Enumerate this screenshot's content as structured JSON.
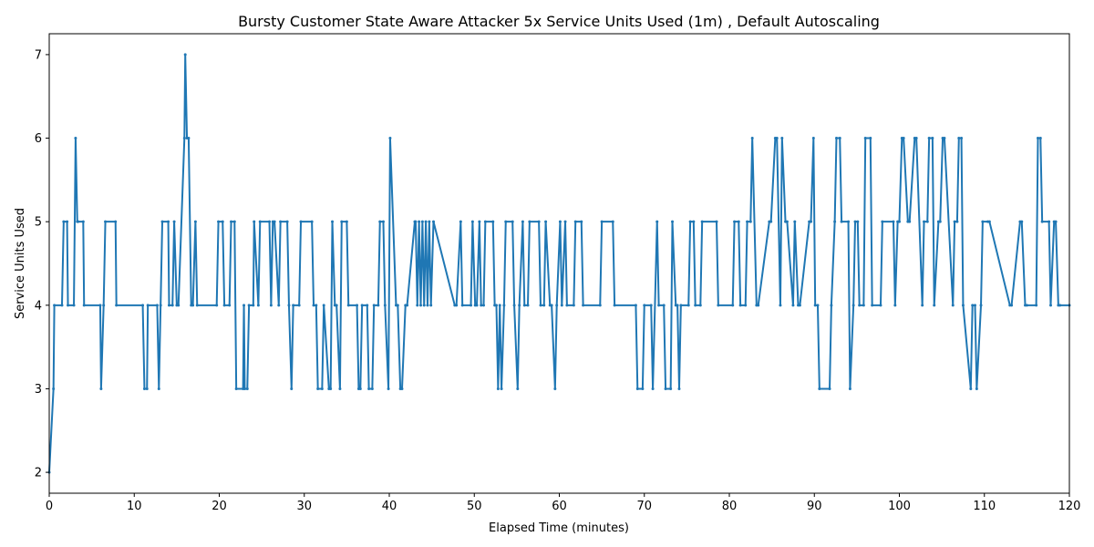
{
  "chart_data": {
    "type": "line",
    "title": "Bursty Customer State Aware Attacker 5x Service Units Used (1m) , Default Autoscaling",
    "xlabel": "Elapsed Time (minutes)",
    "ylabel": "Service Units Used",
    "xlim": [
      0,
      120
    ],
    "ylim": [
      1.75,
      7.25
    ],
    "xticks": [
      0,
      10,
      20,
      30,
      40,
      50,
      60,
      70,
      80,
      90,
      100,
      110,
      120
    ],
    "yticks": [
      2,
      3,
      4,
      5,
      6,
      7
    ],
    "grid": false,
    "color": "#1f77b4",
    "series": [
      {
        "name": "",
        "x": [
          0,
          0.5,
          0.6,
          1.5,
          1.7,
          2.1,
          2.2,
          2.9,
          3.1,
          3.3,
          3.4,
          4.0,
          4.1,
          6.0,
          6.1,
          6.4,
          6.6,
          7.8,
          7.9,
          11.0,
          11.2,
          11.5,
          11.6,
          12.7,
          12.9,
          13.1,
          13.3,
          14.0,
          14.1,
          14.5,
          14.7,
          15.0,
          15.2,
          15.9,
          16.0,
          16.2,
          16.4,
          16.7,
          16.9,
          17.2,
          17.4,
          19.7,
          19.9,
          20.4,
          20.6,
          21.2,
          21.4,
          21.8,
          22.0,
          22.8,
          22.9,
          23.0,
          23.3,
          23.5,
          24.0,
          24.1,
          24.6,
          24.8,
          25.9,
          26.1,
          26.3,
          26.5,
          27.0,
          27.2,
          28.0,
          28.2,
          28.5,
          28.7,
          29.4,
          29.6,
          30.9,
          31.1,
          31.4,
          31.6,
          32.1,
          32.3,
          32.9,
          33.1,
          33.3,
          33.6,
          33.8,
          34.2,
          34.4,
          35.0,
          35.2,
          36.2,
          36.4,
          36.6,
          36.8,
          37.4,
          37.6,
          38.0,
          38.2,
          38.7,
          38.9,
          39.3,
          39.5,
          39.9,
          40.1,
          40.8,
          41.0,
          41.3,
          41.5,
          41.9,
          42.1,
          43.0,
          43.1,
          43.3,
          43.5,
          43.7,
          43.9,
          44.1,
          44.3,
          44.5,
          44.7,
          44.9,
          45.2,
          47.7,
          47.9,
          48.4,
          48.6,
          49.6,
          49.8,
          50.1,
          50.3,
          50.6,
          50.8,
          51.1,
          51.3,
          52.2,
          52.4,
          52.6,
          52.8,
          53.0,
          53.2,
          53.5,
          53.7,
          54.5,
          54.7,
          55.1,
          55.3,
          55.7,
          55.9,
          56.3,
          56.5,
          57.6,
          57.8,
          58.2,
          58.4,
          58.9,
          59.1,
          59.5,
          59.7,
          60.1,
          60.3,
          60.7,
          60.9,
          61.7,
          61.9,
          62.6,
          62.8,
          64.8,
          65.0,
          66.3,
          66.5,
          69.0,
          69.2,
          69.8,
          70.0,
          70.8,
          71.0,
          71.5,
          71.7,
          72.3,
          72.5,
          73.1,
          73.3,
          73.7,
          73.9,
          74.1,
          74.3,
          75.2,
          75.4,
          75.8,
          76.0,
          76.6,
          76.8,
          78.5,
          78.7,
          80.4,
          80.6,
          81.1,
          81.3,
          81.9,
          82.1,
          82.5,
          82.7,
          83.2,
          83.4,
          84.7,
          84.9,
          85.4,
          85.6,
          86.0,
          86.2,
          86.6,
          86.8,
          87.5,
          87.7,
          88.1,
          88.3,
          89.4,
          89.6,
          89.9,
          90.1,
          90.4,
          90.6,
          91.8,
          92.0,
          92.4,
          92.6,
          93.0,
          93.2,
          94.0,
          94.2,
          94.6,
          94.8,
          95.1,
          95.3,
          95.8,
          96.0,
          96.6,
          96.8,
          97.8,
          98.0,
          99.3,
          99.5,
          99.8,
          100.0,
          100.3,
          100.5,
          101.0,
          101.2,
          101.8,
          102.0,
          102.7,
          102.9,
          103.3,
          103.5,
          103.9,
          104.1,
          104.6,
          104.8,
          105.1,
          105.3,
          106.3,
          106.5,
          106.8,
          107.0,
          107.3,
          107.5,
          108.4,
          108.6,
          108.9,
          109.1,
          109.6,
          109.8,
          110.4,
          110.6,
          113.0,
          113.2,
          114.2,
          114.4,
          114.8,
          115.0,
          116.1,
          116.3,
          116.6,
          116.8,
          117.6,
          117.8,
          118.2,
          118.4,
          118.7,
          118.9,
          120.0
        ],
        "y": [
          2,
          3,
          4,
          4,
          5,
          5,
          4,
          4,
          6,
          5,
          5,
          5,
          4,
          4,
          3,
          4,
          5,
          5,
          4,
          4,
          3,
          3,
          4,
          4,
          3,
          4,
          5,
          5,
          4,
          4,
          5,
          4,
          4,
          6,
          7,
          6,
          6,
          4,
          4,
          5,
          4,
          4,
          5,
          5,
          4,
          4,
          5,
          5,
          3,
          3,
          4,
          3,
          3,
          4,
          4,
          5,
          4,
          5,
          5,
          4,
          5,
          5,
          4,
          5,
          5,
          4,
          3,
          4,
          4,
          5,
          5,
          4,
          4,
          3,
          3,
          4,
          3,
          3,
          5,
          4,
          4,
          3,
          5,
          5,
          4,
          4,
          3,
          3,
          4,
          4,
          3,
          3,
          4,
          4,
          5,
          5,
          4,
          3,
          6,
          4,
          4,
          3,
          3,
          4,
          4,
          5,
          5,
          4,
          5,
          4,
          5,
          4,
          5,
          4,
          5,
          4,
          5,
          4,
          4,
          5,
          4,
          4,
          5,
          4,
          4,
          5,
          4,
          4,
          5,
          5,
          4,
          4,
          3,
          4,
          3,
          4,
          5,
          5,
          4,
          3,
          4,
          5,
          4,
          4,
          5,
          5,
          4,
          4,
          5,
          4,
          4,
          3,
          4,
          5,
          4,
          5,
          4,
          4,
          5,
          5,
          4,
          4,
          5,
          5,
          4,
          4,
          3,
          3,
          4,
          4,
          3,
          5,
          4,
          4,
          3,
          3,
          5,
          4,
          4,
          3,
          4,
          4,
          5,
          5,
          4,
          4,
          5,
          5,
          4,
          4,
          5,
          5,
          4,
          4,
          5,
          5,
          6,
          4,
          4,
          5,
          5,
          6,
          6,
          4,
          6,
          5,
          5,
          4,
          5,
          4,
          4,
          5,
          5,
          6,
          4,
          4,
          3,
          3,
          4,
          5,
          6,
          6,
          5,
          5,
          3,
          4,
          5,
          5,
          4,
          4,
          6,
          6,
          4,
          4,
          5,
          5,
          4,
          5,
          5,
          6,
          6,
          5,
          5,
          6,
          6,
          4,
          5,
          5,
          6,
          6,
          4,
          5,
          5,
          6,
          6,
          4,
          5,
          5,
          6,
          6,
          4,
          3,
          4,
          4,
          3,
          4,
          5,
          5,
          5,
          4,
          4,
          5,
          5,
          4,
          4,
          4,
          6,
          6,
          5,
          5,
          4,
          5,
          5,
          4,
          4,
          4
        ]
      }
    ]
  }
}
